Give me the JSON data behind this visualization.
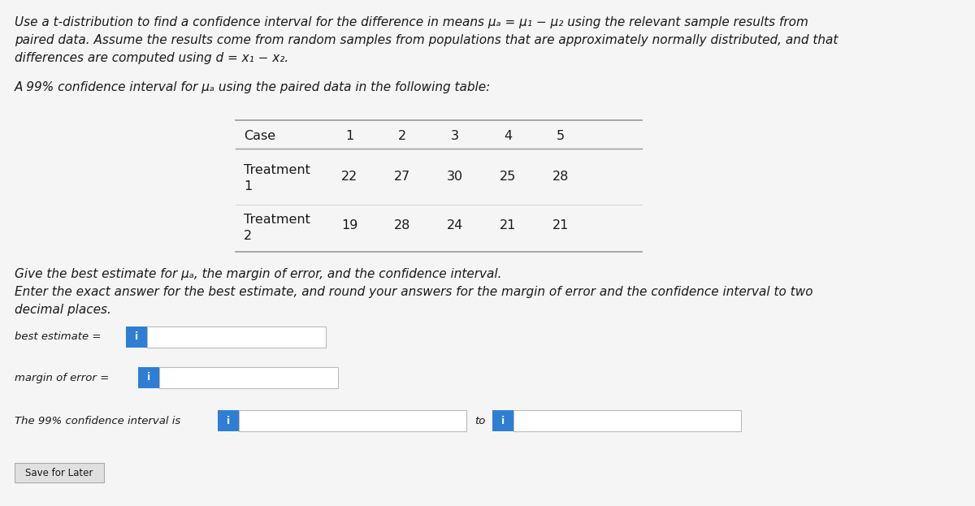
{
  "bg_color": "#e8e8e8",
  "white_bg": "#f5f5f5",
  "para_line1": "Use a t-distribution to find a confidence interval for the difference in means μₐ = μ₁ − μ₂ using the relevant sample results from",
  "para_line2": "paired data. Assume the results come from random samples from populations that are approximately normally distributed, and that",
  "para_line3": "differences are computed using d = x₁ − x₂.",
  "subtitle": "A 99% confidence interval for μₐ using the paired data in the following table:",
  "table_header": [
    "Case",
    "1",
    "2",
    "3",
    "4",
    "5"
  ],
  "table_row1_label1": "Treatment",
  "table_row1_label2": "1",
  "table_row1_values": [
    "22",
    "27",
    "30",
    "25",
    "28"
  ],
  "table_row2_label1": "Treatment",
  "table_row2_label2": "2",
  "table_row2_values": [
    "19",
    "28",
    "24",
    "21",
    "21"
  ],
  "instr1": "Give the best estimate for μₐ, the margin of error, and the confidence interval.",
  "instr2": "Enter the exact answer for the best estimate, and round your answers for the margin of error and the confidence interval to two",
  "instr3": "decimal places.",
  "label_best": "best estimate =",
  "label_margin": "margin of error =",
  "label_interval": "The 99% confidence interval is",
  "label_to": "to",
  "save_btn": "Save for Later",
  "btn_color": "#2e7fd4",
  "input_bg": "#ffffff",
  "input_border": "#bbbbbb",
  "text_color": "#1a1a1a",
  "gray_text": "#555555",
  "line_color": "#999999",
  "fs_main": 11.0,
  "fs_table": 11.5,
  "fs_small": 9.5
}
